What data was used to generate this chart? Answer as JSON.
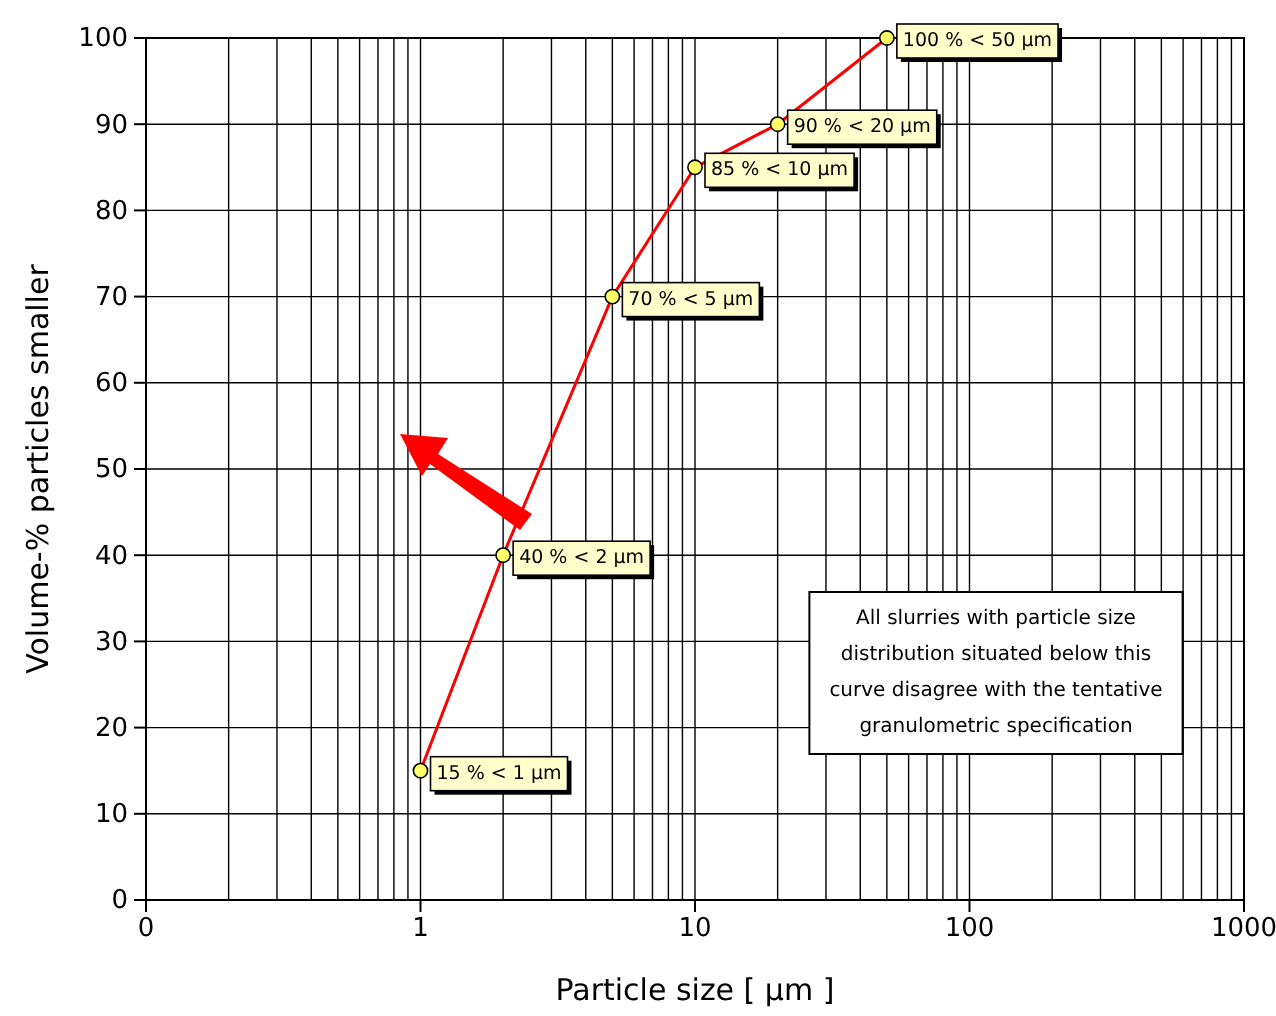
{
  "chart_data": {
    "type": "line",
    "xlabel": "Particle size  [ µm ]",
    "ylabel": "Volume-% particles smaller",
    "log": "x",
    "x": [
      1,
      2,
      5,
      10,
      20,
      50
    ],
    "series": [
      {
        "color": "#ff0000",
        "values": [
          15,
          40,
          70,
          85,
          90,
          100
        ]
      }
    ],
    "xlim": [
      0.1,
      1000
    ],
    "xticks": [
      {
        "value": 0.1,
        "label": "0"
      },
      1,
      10,
      100,
      1000
    ],
    "ylim": [
      0,
      100
    ],
    "yticks": [
      0,
      10,
      20,
      30,
      40,
      50,
      60,
      70,
      80,
      90,
      100
    ],
    "grid": true,
    "marker": "circle",
    "line_style": "solid",
    "annotations": [
      {
        "text": "15 % < 1 µm",
        "x": 1,
        "y": 15
      },
      {
        "text": "40 % < 2 µm",
        "x": 2,
        "y": 40
      },
      {
        "text": "70 % < 5  µm",
        "x": 5,
        "y": 70
      },
      {
        "text": "85 % < 10 µm",
        "x": 10,
        "y": 85
      },
      {
        "text": "90 % < 20 µm",
        "x": 20,
        "y": 90
      },
      {
        "text": "100 % < 50 µm",
        "x": 50,
        "y": 100
      },
      "All slurries with particle size\ndistribution situated below this\ncurve disagree with the tentative\ngranulometric specification"
    ]
  }
}
